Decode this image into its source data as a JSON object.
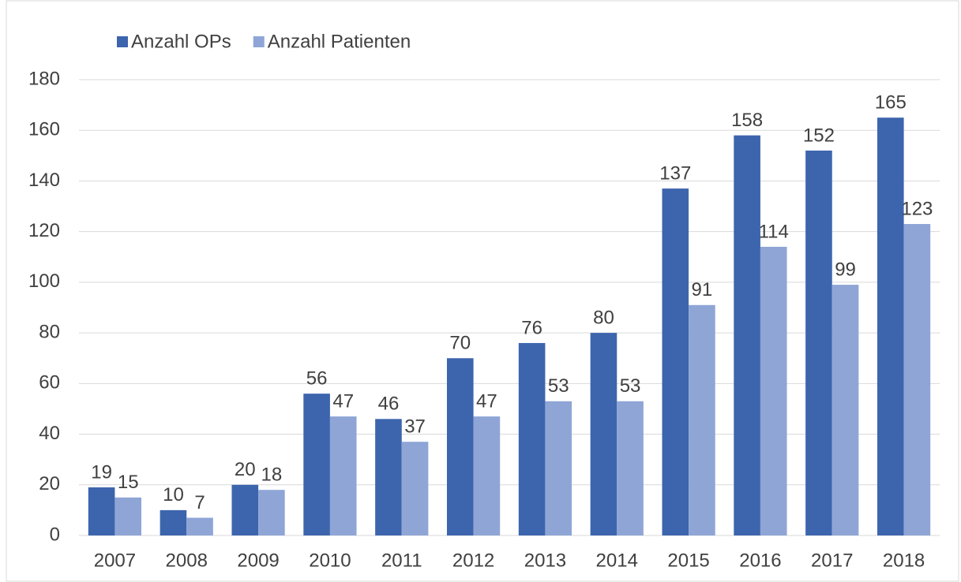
{
  "chart_data": {
    "type": "bar",
    "categories": [
      "2007",
      "2008",
      "2009",
      "2010",
      "2011",
      "2012",
      "2013",
      "2014",
      "2015",
      "2016",
      "2017",
      "2018"
    ],
    "series": [
      {
        "name": "Anzahl OPs",
        "color": "#3d65ae",
        "values": [
          19,
          10,
          20,
          56,
          46,
          70,
          76,
          80,
          137,
          158,
          152,
          165
        ]
      },
      {
        "name": "Anzahl Patienten",
        "color": "#8fa5d6",
        "values": [
          15,
          7,
          18,
          47,
          37,
          47,
          53,
          53,
          91,
          114,
          99,
          123
        ]
      }
    ],
    "ylim": [
      0,
      180
    ],
    "yticks": [
      0,
      20,
      40,
      60,
      80,
      100,
      120,
      140,
      160,
      180
    ],
    "grid": true,
    "legend": "top-left"
  }
}
